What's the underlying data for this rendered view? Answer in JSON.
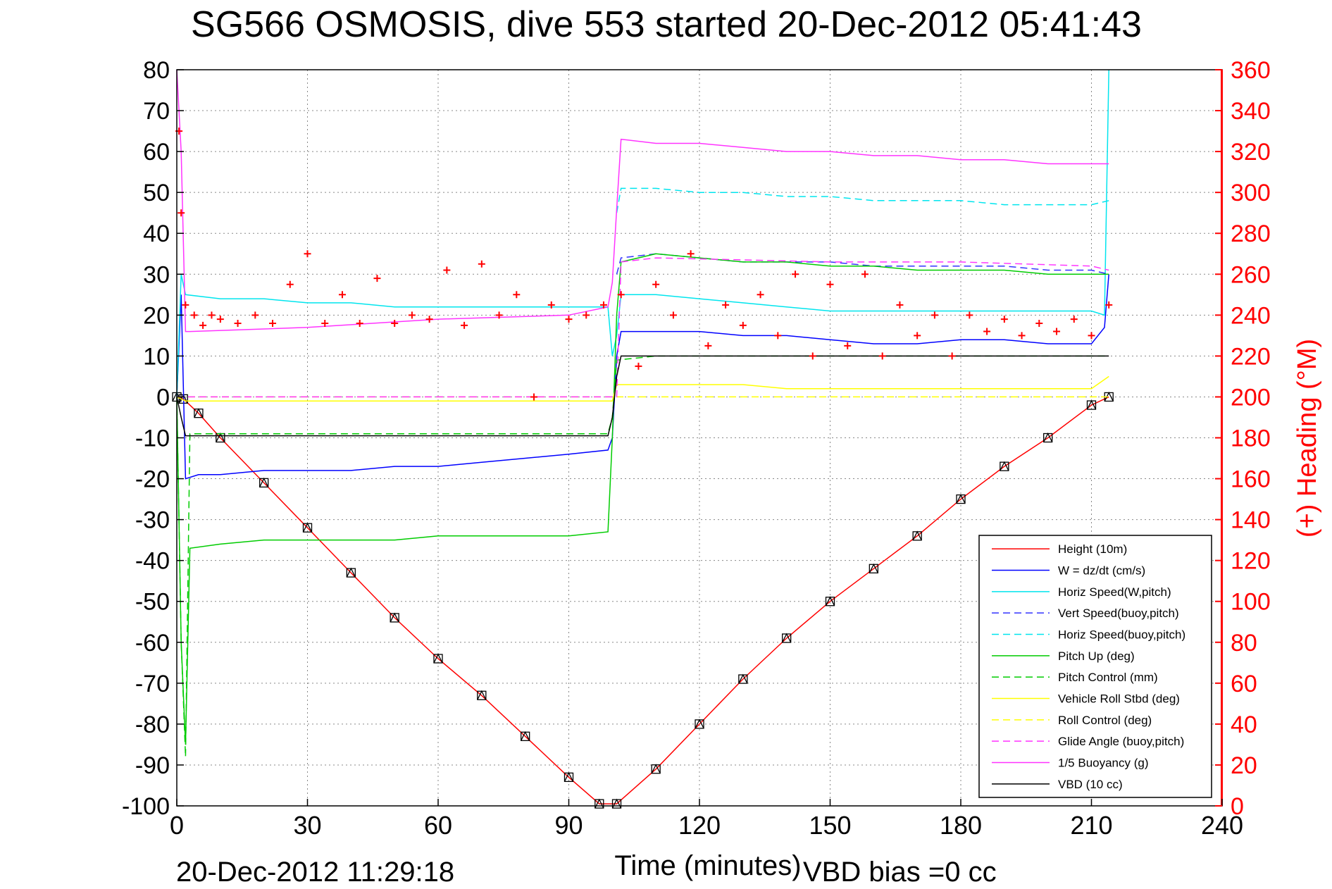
{
  "chart_data": {
    "type": "line",
    "title": "SG566 OSMOSIS, dive 553 started 20-Dec-2012 05:41:43",
    "xlabel": "Time (minutes)",
    "ylabel": "",
    "y2label": "(+) Heading (°M)",
    "footer_left": "20-Dec-2012 11:29:18",
    "footer_right": "VBD bias =0 cc",
    "xlim": [
      0,
      240
    ],
    "ylim": [
      -100,
      80
    ],
    "y2lim": [
      0,
      360
    ],
    "xticks": [
      "0",
      "30",
      "60",
      "90",
      "120",
      "150",
      "180",
      "210",
      "240"
    ],
    "yticks": [
      "80",
      "70",
      "60",
      "50",
      "40",
      "30",
      "20",
      "10",
      "0",
      "-10",
      "-20",
      "-30",
      "-40",
      "-50",
      "-60",
      "-70",
      "-80",
      "-90",
      "-100"
    ],
    "y2ticks": [
      "360",
      "340",
      "320",
      "300",
      "280",
      "260",
      "240",
      "220",
      "200",
      "180",
      "160",
      "140",
      "120",
      "100",
      "80",
      "60",
      "40",
      "20",
      "0"
    ],
    "grid": true,
    "legend_position": "bottom-right",
    "series": [
      {
        "name": "Height (10m)",
        "color": "#ff0000",
        "style": "solid",
        "x": [
          0,
          1.5,
          5,
          10,
          20,
          30,
          40,
          50,
          60,
          70,
          80,
          90,
          97,
          101,
          110,
          120,
          130,
          140,
          150,
          160,
          170,
          180,
          190,
          200,
          210,
          214
        ],
        "y": [
          0,
          -0.5,
          -4,
          -10,
          -21,
          -32,
          -43,
          -54,
          -64,
          -73,
          -83,
          -93,
          -99.5,
          -99.5,
          -91,
          -80,
          -69,
          -59,
          -50,
          -42,
          -34,
          -25,
          -17,
          -10,
          -2,
          0
        ]
      },
      {
        "name": "W = dz/dt (cm/s)",
        "color": "#0000ff",
        "style": "solid",
        "x": [
          0,
          1,
          2,
          5,
          10,
          20,
          30,
          40,
          50,
          60,
          70,
          80,
          90,
          99,
          100,
          101,
          102,
          110,
          120,
          130,
          140,
          150,
          160,
          170,
          180,
          190,
          200,
          210,
          213,
          214
        ],
        "y": [
          0,
          25,
          -20,
          -19,
          -19,
          -18,
          -18,
          -18,
          -17,
          -17,
          -16,
          -15,
          -14,
          -13,
          -10,
          10,
          16,
          16,
          16,
          15,
          15,
          14,
          13,
          13,
          14,
          14,
          13,
          13,
          17,
          30
        ]
      },
      {
        "name": "Horiz Speed(W,pitch)",
        "color": "#00e5ee",
        "style": "solid",
        "x": [
          0,
          1,
          2,
          10,
          20,
          30,
          40,
          50,
          60,
          70,
          80,
          90,
          99,
          100,
          101,
          102,
          110,
          120,
          130,
          140,
          150,
          160,
          170,
          180,
          190,
          200,
          210,
          213,
          214
        ],
        "y": [
          0,
          30,
          25,
          24,
          24,
          23,
          23,
          22,
          22,
          22,
          22,
          22,
          22,
          10,
          15,
          25,
          25,
          24,
          23,
          22,
          21,
          21,
          21,
          21,
          21,
          21,
          21,
          20,
          80
        ]
      },
      {
        "name": "Vert Speed(buoy,pitch)",
        "color": "#3333ff",
        "style": "dashed",
        "x": [
          101,
          102,
          110,
          120,
          130,
          140,
          150,
          160,
          170,
          180,
          190,
          200,
          210,
          214
        ],
        "y": [
          30,
          34,
          35,
          34,
          33,
          33,
          33,
          32,
          32,
          32,
          32,
          31,
          31,
          30
        ]
      },
      {
        "name": "Horiz Speed(buoy,pitch)",
        "color": "#00e5ee",
        "style": "dashed",
        "x": [
          101,
          102,
          110,
          120,
          130,
          140,
          150,
          160,
          170,
          180,
          190,
          200,
          210,
          214
        ],
        "y": [
          45,
          51,
          51,
          50,
          50,
          49,
          49,
          48,
          48,
          48,
          47,
          47,
          47,
          48
        ]
      },
      {
        "name": "Pitch Up (deg)",
        "color": "#00cc00",
        "style": "solid",
        "x": [
          0,
          1,
          2,
          3,
          10,
          20,
          30,
          40,
          50,
          60,
          70,
          80,
          90,
          99,
          100,
          101,
          102,
          110,
          120,
          130,
          140,
          150,
          160,
          170,
          180,
          190,
          200,
          210,
          214
        ],
        "y": [
          0,
          -60,
          -85,
          -37,
          -36,
          -35,
          -35,
          -35,
          -35,
          -34,
          -34,
          -34,
          -34,
          -33,
          -10,
          20,
          33,
          35,
          34,
          33,
          33,
          32,
          32,
          31,
          31,
          31,
          30,
          30,
          30
        ]
      },
      {
        "name": "Pitch Control (mm)",
        "color": "#00cc00",
        "style": "dashed",
        "x": [
          0,
          1,
          2,
          3,
          10,
          99,
          100,
          101,
          110,
          214
        ],
        "y": [
          0,
          -60,
          -88,
          -9,
          -9,
          -9,
          -5,
          9,
          10,
          10
        ]
      },
      {
        "name": "Vehicle Roll Stbd (deg)",
        "color": "#ffff00",
        "style": "solid",
        "x": [
          0,
          2,
          5,
          10,
          20,
          30,
          40,
          50,
          60,
          70,
          80,
          90,
          100,
          101,
          110,
          120,
          130,
          140,
          150,
          160,
          170,
          180,
          190,
          200,
          210,
          214
        ],
        "y": [
          0,
          -1,
          -1,
          -1,
          -1,
          -1,
          -1,
          -1,
          -1,
          -1,
          -1,
          -1,
          -1,
          3,
          3,
          3,
          3,
          2,
          2,
          2,
          2,
          2,
          2,
          2,
          2,
          5
        ]
      },
      {
        "name": "Roll Control (deg)",
        "color": "#ffff00",
        "style": "dashed",
        "x": [
          0,
          2,
          100,
          101,
          214
        ],
        "y": [
          0,
          0,
          0,
          0,
          0
        ]
      },
      {
        "name": "Glide Angle (buoy,pitch)",
        "color": "#ff33ff",
        "style": "dashed",
        "x": [
          0,
          2,
          100,
          101,
          102,
          110,
          150,
          180,
          210,
          214
        ],
        "y": [
          0,
          0,
          0,
          0,
          33,
          34,
          33,
          33,
          32,
          31
        ]
      },
      {
        "name": "1/5 Buoyancy (g)",
        "color": "#ff33ff",
        "style": "solid",
        "x": [
          0,
          1,
          2,
          3,
          30,
          60,
          90,
          99,
          100,
          101,
          102,
          110,
          120,
          130,
          140,
          150,
          160,
          170,
          180,
          190,
          200,
          210,
          214
        ],
        "y": [
          80,
          60,
          16,
          16,
          17,
          19,
          20,
          22,
          28,
          46,
          63,
          62,
          62,
          61,
          60,
          60,
          59,
          59,
          58,
          58,
          57,
          57,
          57
        ]
      },
      {
        "name": "VBD (10 cc)",
        "color": "#000000",
        "style": "solid",
        "x": [
          0,
          1,
          2,
          99,
          100,
          101,
          102,
          214
        ],
        "y": [
          0,
          -5,
          -9.5,
          -9.5,
          -5,
          5,
          10,
          10
        ]
      },
      {
        "name": "Heading",
        "color": "#ff0000",
        "style": "markers",
        "axis": "right",
        "x": [
          0.5,
          1,
          2,
          4,
          6,
          8,
          10,
          14,
          18,
          22,
          26,
          30,
          34,
          38,
          42,
          46,
          50,
          54,
          58,
          62,
          66,
          70,
          74,
          78,
          82,
          86,
          90,
          94,
          98,
          102,
          106,
          110,
          114,
          118,
          122,
          126,
          130,
          134,
          138,
          142,
          146,
          150,
          154,
          158,
          162,
          166,
          170,
          174,
          178,
          182,
          186,
          190,
          194,
          198,
          202,
          206,
          210,
          214
        ],
        "y": [
          330,
          290,
          245,
          240,
          235,
          240,
          238,
          236,
          240,
          236,
          255,
          270,
          236,
          250,
          236,
          258,
          236,
          240,
          238,
          262,
          235,
          265,
          240,
          250,
          200,
          245,
          238,
          240,
          245,
          250,
          215,
          255,
          240,
          270,
          225,
          245,
          235,
          250,
          230,
          260,
          220,
          255,
          225,
          260,
          220,
          245,
          230,
          240,
          220,
          240,
          232,
          238,
          230,
          236,
          232,
          238,
          230,
          245
        ]
      }
    ]
  }
}
